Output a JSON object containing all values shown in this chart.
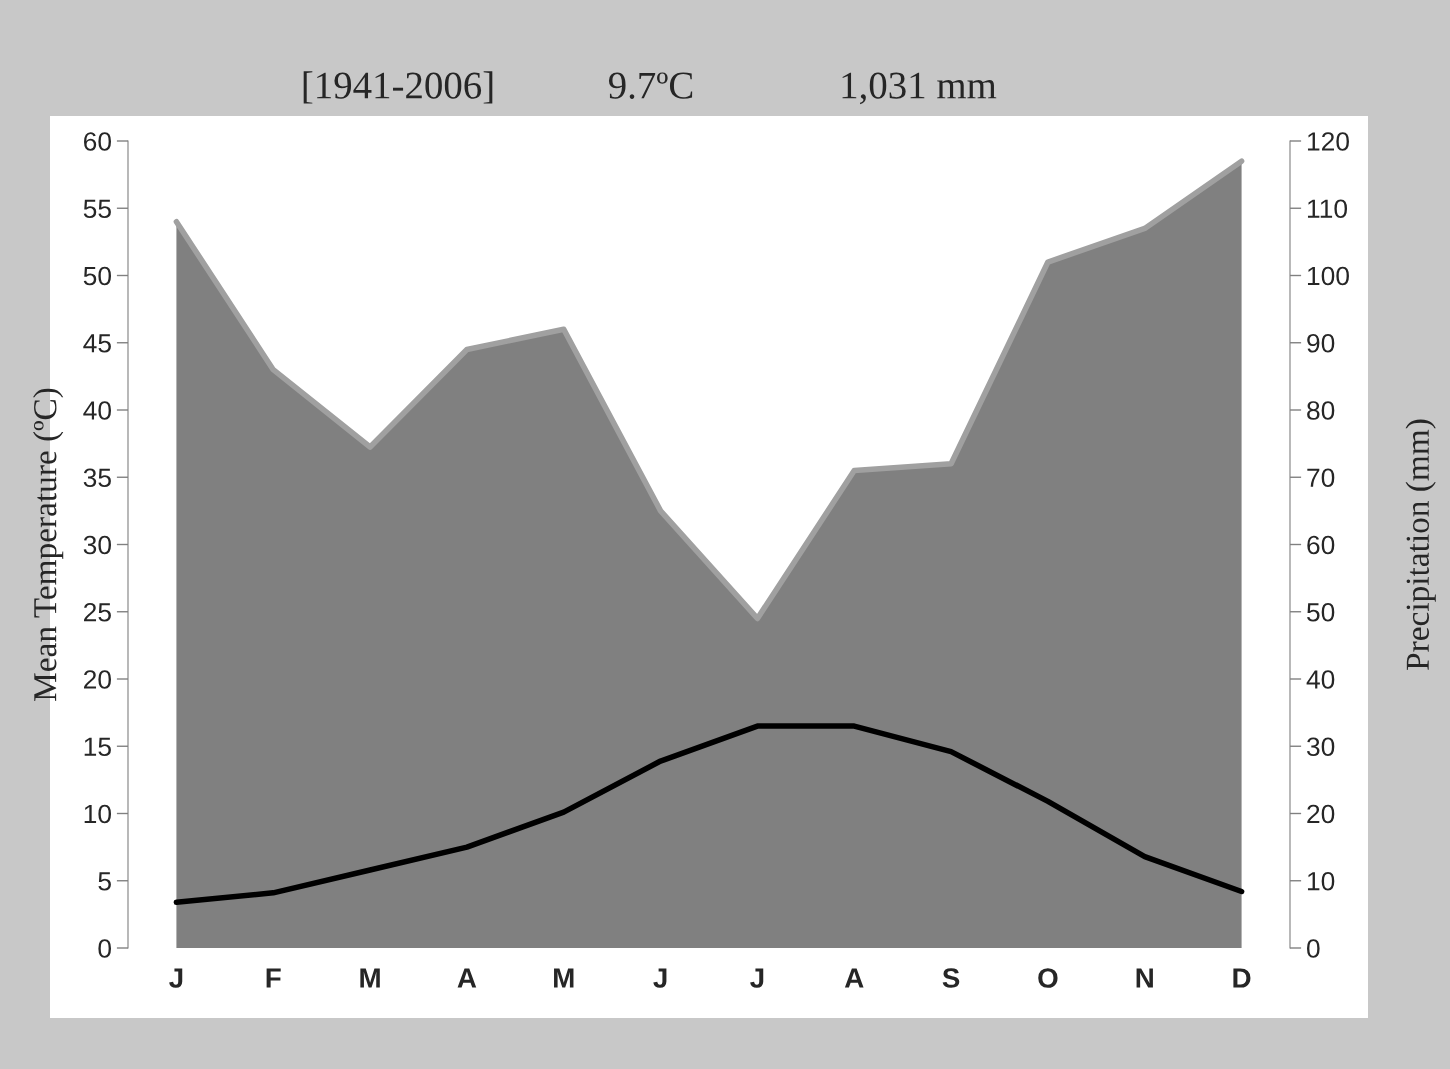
{
  "chart_data": {
    "type": "area",
    "annotations": [
      "[1941-2006]",
      "9.7ºC",
      "1,031 mm"
    ],
    "categories": [
      "J",
      "F",
      "M",
      "A",
      "M",
      "J",
      "J",
      "A",
      "S",
      "O",
      "N",
      "D"
    ],
    "ylabel": "Mean Temperature (ºC)",
    "y2label": "Precipitation (mm)",
    "ylim": [
      0,
      60
    ],
    "yticks": [
      0,
      5,
      10,
      15,
      20,
      25,
      30,
      35,
      40,
      45,
      50,
      55,
      60
    ],
    "y2lim": [
      0,
      120
    ],
    "y2ticks": [
      0,
      10,
      20,
      30,
      40,
      50,
      60,
      70,
      80,
      90,
      100,
      110,
      120
    ],
    "grid": false,
    "legend": false,
    "marker": "none",
    "series": [
      {
        "axis": "y2",
        "color": "#808080",
        "values": [
          108,
          86,
          74.5,
          89,
          92,
          65,
          49,
          71,
          72,
          102,
          107,
          117
        ]
      },
      {
        "type": "line",
        "axis": "y",
        "color": "#000000",
        "line_style": "solid",
        "values": [
          3.4,
          4.1,
          5.8,
          7.5,
          10.1,
          13.9,
          16.5,
          16.5,
          14.6,
          10.9,
          6.8,
          4.2
        ]
      }
    ]
  }
}
